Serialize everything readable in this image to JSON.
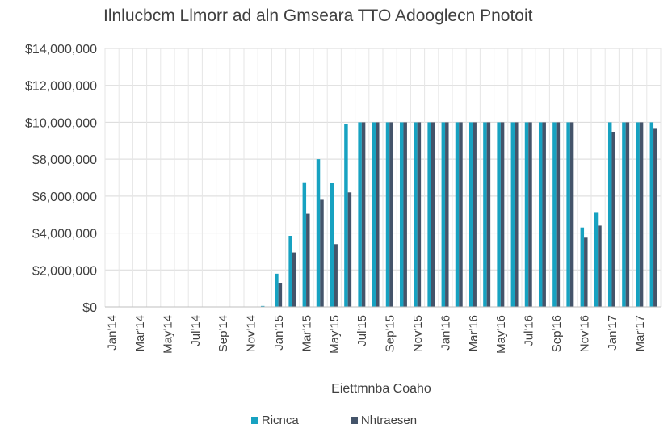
{
  "chart_data": {
    "type": "bar",
    "title": "Ilnlucbcm Llmorr ad aln Gmseara TTO Adooglecn Pnotoit",
    "xlabel": "Eiettmnba Coaho",
    "ylabel": "",
    "ylim": [
      0,
      14000000
    ],
    "yticks": [
      "$0",
      "$2,000,000",
      "$4,000,000",
      "$6,000,000",
      "$8,000,000",
      "$10,000,000",
      "$12,000,000",
      "$14,000,000"
    ],
    "grid": "vertical and horizontal",
    "legend_position": "bottom",
    "x_tick_labels": [
      "Jan'14",
      "Mar'14",
      "May'14",
      "Jul'14",
      "Sep'14",
      "Nov'14",
      "Jan'15",
      "Mar'15",
      "May'15",
      "Jul'15",
      "Sep'15",
      "Nov'15",
      "Jan'16",
      "Mar'16",
      "May'16",
      "Jul'16",
      "Sep'16",
      "Nov'16",
      "Jan'17",
      "Mar'17"
    ],
    "categories": [
      "Jan'14",
      "Feb'14",
      "Mar'14",
      "Apr'14",
      "May'14",
      "Jun'14",
      "Jul'14",
      "Aug'14",
      "Sep'14",
      "Oct'14",
      "Nov'14",
      "Dec'14",
      "Jan'15",
      "Feb'15",
      "Mar'15",
      "Apr'15",
      "May'15",
      "Jun'15",
      "Jul'15",
      "Aug'15",
      "Sep'15",
      "Oct'15",
      "Nov'15",
      "Dec'15",
      "Jan'16",
      "Feb'16",
      "Mar'16",
      "Apr'16",
      "May'16",
      "Jun'16",
      "Jul'16",
      "Aug'16",
      "Sep'16",
      "Oct'16",
      "Nov'16",
      "Dec'16",
      "Jan'17",
      "Feb'17",
      "Mar'17",
      "Apr'17"
    ],
    "series": [
      {
        "name": "Ricnca",
        "color": "#17a2c1",
        "values": [
          0,
          0,
          0,
          0,
          0,
          0,
          0,
          0,
          0,
          0,
          0,
          50000,
          1800000,
          3850000,
          6750000,
          8000000,
          6700000,
          9900000,
          10000000,
          10000000,
          10000000,
          10000000,
          10000000,
          10000000,
          10000000,
          10000000,
          10000000,
          10000000,
          10000000,
          10000000,
          10000000,
          10000000,
          10000000,
          10000000,
          4300000,
          5100000,
          10000000,
          10000000,
          10000000,
          10000000
        ]
      },
      {
        "name": "Nhtraesen",
        "color": "#44546a",
        "values": [
          0,
          0,
          0,
          0,
          0,
          0,
          0,
          0,
          0,
          0,
          0,
          0,
          1300000,
          2950000,
          5050000,
          5800000,
          3400000,
          6200000,
          10000000,
          10000000,
          10000000,
          10000000,
          10000000,
          10000000,
          10000000,
          10000000,
          10000000,
          10000000,
          10000000,
          10000000,
          10000000,
          10000000,
          10000000,
          10000000,
          3750000,
          4400000,
          9450000,
          10000000,
          10000000,
          9650000
        ]
      }
    ]
  }
}
